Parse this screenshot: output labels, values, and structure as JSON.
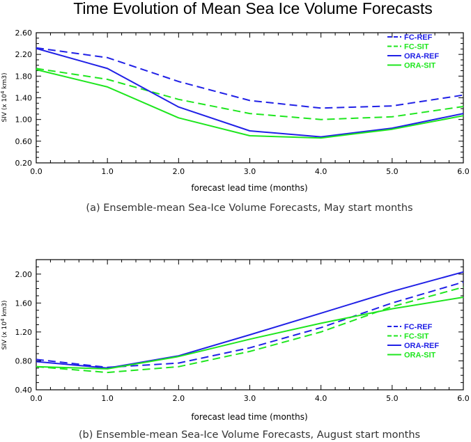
{
  "page": {
    "title": "Time Evolution of Mean Sea Ice Volume Forecasts"
  },
  "chart_data": [
    {
      "type": "line",
      "caption": "(a) Ensemble-mean Sea-Ice Volume Forecasts, May start months",
      "xlabel": "forecast lead time (months)",
      "ylabel": "SIV (x 10",
      "ylabel_sup": "4",
      "ylabel_unit": " km3)",
      "xlim": [
        0,
        6
      ],
      "ylim": [
        0.2,
        2.6
      ],
      "xticks": [
        "0.0",
        "1.0",
        "2.0",
        "3.0",
        "4.0",
        "5.0",
        "6.0"
      ],
      "yticks": [
        "0.20",
        "0.60",
        "1.00",
        "1.40",
        "1.80",
        "2.20",
        "2.60"
      ],
      "legend_position": "top-right",
      "x": [
        0,
        1,
        2,
        3,
        4,
        5,
        6
      ],
      "series": [
        {
          "name": "FC-REF",
          "color": "#2020e6",
          "dash": "dashed",
          "values": [
            2.32,
            2.14,
            1.7,
            1.35,
            1.21,
            1.25,
            1.45
          ]
        },
        {
          "name": "FC-SIT",
          "color": "#1ee61e",
          "dash": "dashed",
          "values": [
            1.94,
            1.74,
            1.37,
            1.11,
            1.0,
            1.05,
            1.24
          ]
        },
        {
          "name": "ORA-REF",
          "color": "#2020e6",
          "dash": "solid",
          "values": [
            2.31,
            1.94,
            1.23,
            0.79,
            0.68,
            0.84,
            1.11
          ]
        },
        {
          "name": "ORA-SIT",
          "color": "#1ee61e",
          "dash": "solid",
          "values": [
            1.92,
            1.6,
            1.03,
            0.7,
            0.66,
            0.82,
            1.07
          ]
        }
      ]
    },
    {
      "type": "line",
      "caption": "(b) Ensemble-mean Sea-Ice Volume Forecasts, August start months",
      "xlabel": "forecast lead time (months)",
      "ylabel": "SIV (x 10",
      "ylabel_sup": "4",
      "ylabel_unit": " km3)",
      "xlim": [
        0,
        6
      ],
      "ylim": [
        0.4,
        2.2
      ],
      "xticks": [
        "0.0",
        "1.0",
        "2.0",
        "3.0",
        "4.0",
        "5.0",
        "6.0"
      ],
      "yticks": [
        "0.40",
        "0.80",
        "1.20",
        "1.60",
        "2.00"
      ],
      "legend_position": "right",
      "x": [
        0,
        1,
        2,
        3,
        4,
        5,
        6
      ],
      "series": [
        {
          "name": "FC-REF",
          "color": "#2020e6",
          "dash": "dashed",
          "values": [
            0.82,
            0.71,
            0.77,
            0.98,
            1.26,
            1.6,
            1.89
          ]
        },
        {
          "name": "FC-SIT",
          "color": "#1ee61e",
          "dash": "dashed",
          "values": [
            0.72,
            0.64,
            0.72,
            0.93,
            1.2,
            1.55,
            1.82
          ]
        },
        {
          "name": "ORA-REF",
          "color": "#2020e6",
          "dash": "solid",
          "values": [
            0.79,
            0.7,
            0.87,
            1.16,
            1.46,
            1.76,
            2.03
          ]
        },
        {
          "name": "ORA-SIT",
          "color": "#1ee61e",
          "dash": "solid",
          "values": [
            0.72,
            0.69,
            0.86,
            1.1,
            1.32,
            1.52,
            1.68
          ]
        }
      ]
    }
  ]
}
